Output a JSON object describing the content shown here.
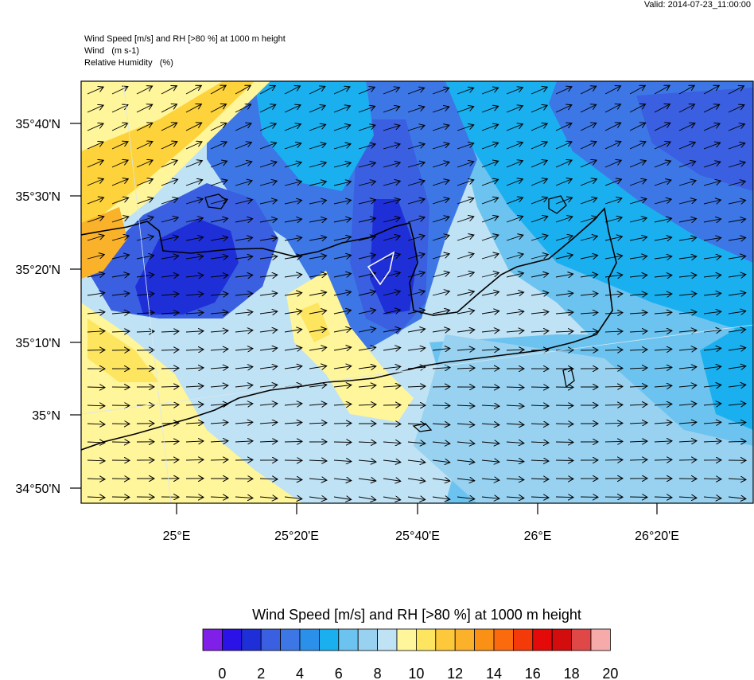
{
  "header": {
    "valid": "Valid: 2014-07-23_11:00:00",
    "title_lines": [
      "Wind Speed [m/s] and RH [>80 %] at 1000 m height",
      "Wind   (m s-1)",
      "Relative Humidity   (%)"
    ]
  },
  "map": {
    "lat_labels": [
      "35°40'N",
      "35°30'N",
      "35°20'N",
      "35°10'N",
      "35°N",
      "34°50'N"
    ],
    "lon_labels": [
      "25°E",
      "25°20'E",
      "25°40'E",
      "26°E",
      "26°20'E"
    ],
    "colors": {
      "deep_blue": "#1f2fd8",
      "blue": "#3a5fe0",
      "mid_blue": "#5c9ae8",
      "cyan": "#15b6f0",
      "light_blue": "#6cc3ef",
      "pale_blue": "#bfe2f4",
      "pale_yellow": "#fff59a",
      "yellow": "#fdd23a",
      "orange": "#f9b22a",
      "coast": "#000000"
    }
  },
  "colorbar": {
    "title": "Wind Speed [m/s] and RH [>80 %] at 1000 m height",
    "colors": [
      "#7f1fe8",
      "#2b12e6",
      "#1f2fd8",
      "#3a5fe0",
      "#3d77e6",
      "#2a90ea",
      "#1ab0f0",
      "#6cc3ef",
      "#98d2f0",
      "#bfe2f4",
      "#fff59a",
      "#fde560",
      "#fdc93a",
      "#fbb12a",
      "#fa9014",
      "#fb6a0c",
      "#f43a08",
      "#e50a0a",
      "#d30d0d",
      "#e04848",
      "#f7aaaa"
    ],
    "ticks": [
      "0",
      "2",
      "4",
      "6",
      "8",
      "10",
      "12",
      "14",
      "16",
      "18",
      "20"
    ]
  }
}
